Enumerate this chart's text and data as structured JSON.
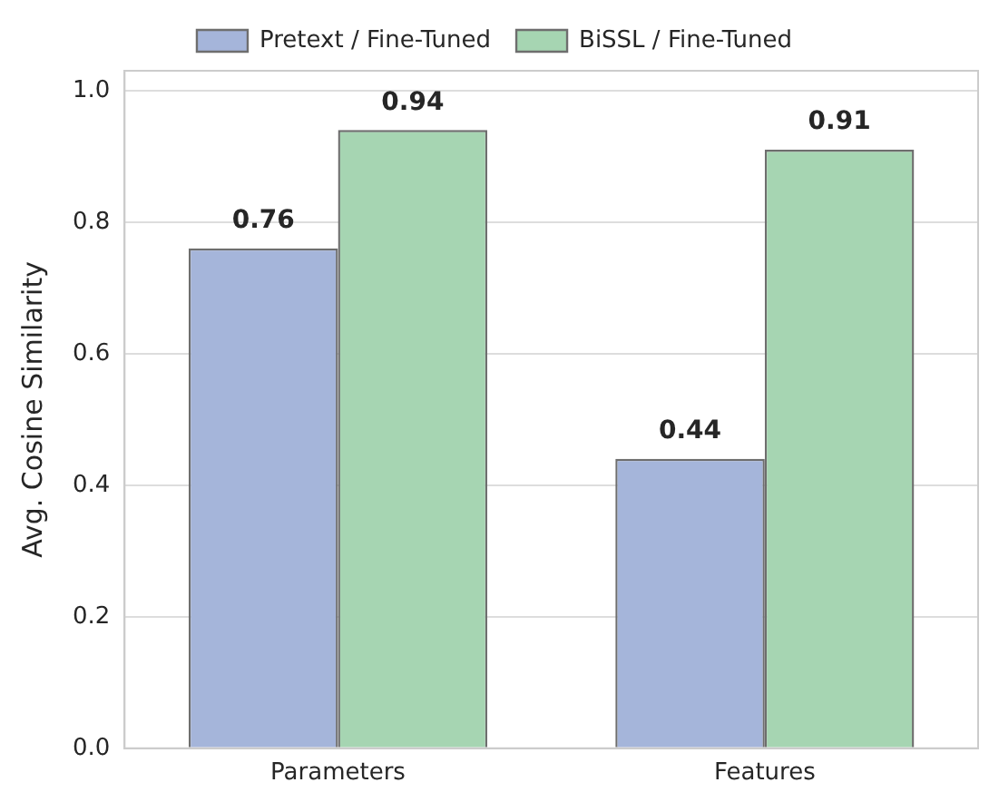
{
  "chart_data": {
    "type": "bar",
    "ylabel": "Avg. Cosine Similarity",
    "categories": [
      "Parameters",
      "Features"
    ],
    "series": [
      {
        "name": "Pretext / Fine-Tuned",
        "color": "#a5b5da",
        "values": [
          0.76,
          0.44
        ]
      },
      {
        "name": "BiSSL / Fine-Tuned",
        "color": "#a6d5b2",
        "values": [
          0.94,
          0.91
        ]
      }
    ],
    "ylim": [
      0,
      1.03
    ],
    "yticks": [
      {
        "value": 0,
        "label": "0.0"
      },
      {
        "value": 0.2,
        "label": "0.2"
      },
      {
        "value": 0.4,
        "label": "0.4"
      },
      {
        "value": 0.6,
        "label": "0.6"
      },
      {
        "value": 0.8,
        "label": "0.8"
      },
      {
        "value": 1,
        "label": "1.0"
      }
    ],
    "grid": "y",
    "legend": "top",
    "data_labels": true
  }
}
